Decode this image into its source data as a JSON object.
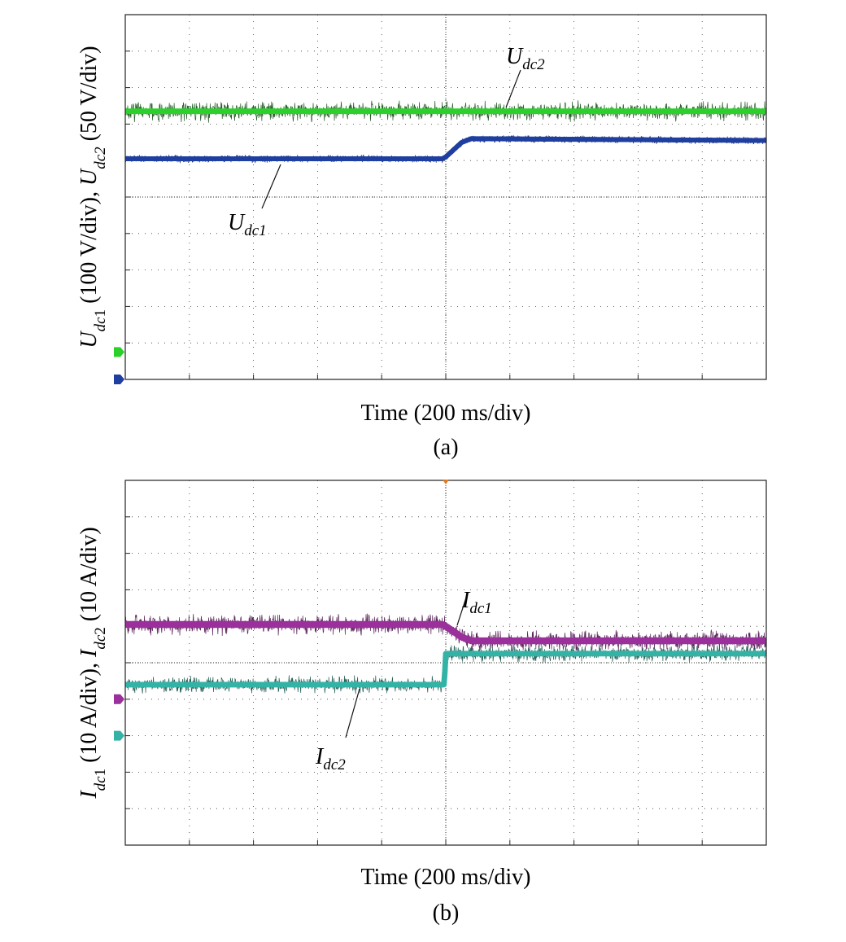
{
  "colors": {
    "udc2": "#2bd02b",
    "udc2_edge": "#124a12",
    "udc1": "#1f3fa0",
    "udc1_edge": "#0b1c55",
    "idc1": "#9b2f9b",
    "idc1_edge": "#4a0f4a",
    "idc2": "#33b3a6",
    "idc2_edge": "#0f4f47",
    "grid": "#333333",
    "frame": "#222222",
    "trigger_marker": "#e07820"
  },
  "chart_data": [
    {
      "type": "line",
      "panel_label": "(a)",
      "xlabel": "Time (200 ms/div)",
      "ylabel_parts": [
        {
          "text": "U",
          "italic": true
        },
        {
          "text": "dc",
          "italic": true,
          "sub": true
        },
        {
          "text": "1",
          "sub": true
        },
        {
          "text": " (100 V/div), "
        },
        {
          "text": "U",
          "italic": true
        },
        {
          "text": "dc",
          "italic": true,
          "sub": true
        },
        {
          "text": "2",
          "sub": true,
          "italic": true
        },
        {
          "text": " (50 V/div)"
        }
      ],
      "x_divisions": 10,
      "y_divisions": 10,
      "xlim": [
        0,
        2000
      ],
      "x_unit": "ms",
      "grid": true,
      "trigger_x": 1000,
      "series": [
        {
          "name_base": "U",
          "name_sub": "dc2",
          "channel_marker_div": 0.75,
          "noise_div": 0.22,
          "thickness_div": 0.18,
          "x": [
            0,
            1000,
            1050,
            2000
          ],
          "y_div": [
            7.35,
            7.35,
            7.35,
            7.35
          ]
        },
        {
          "name_base": "U",
          "name_sub": "dc1",
          "channel_marker_div": 0,
          "noise_div": 0.03,
          "thickness_div": 0.16,
          "x": [
            0,
            990,
            1000,
            1050,
            1080,
            2000
          ],
          "y_div": [
            6.05,
            6.05,
            6.1,
            6.5,
            6.6,
            6.55
          ]
        }
      ],
      "annotations": [
        {
          "series": "U_dc2",
          "base": "U",
          "sub": "dc2"
        },
        {
          "series": "U_dc1",
          "base": "U",
          "sub": "dc1"
        }
      ]
    },
    {
      "type": "line",
      "panel_label": "(b)",
      "xlabel": "Time (200 ms/div)",
      "ylabel_parts": [
        {
          "text": "I",
          "italic": true
        },
        {
          "text": "dc",
          "italic": true,
          "sub": true
        },
        {
          "text": "1",
          "sub": true
        },
        {
          "text": " (10 A/div), "
        },
        {
          "text": "I",
          "italic": true
        },
        {
          "text": "dc",
          "italic": true,
          "sub": true
        },
        {
          "text": "2",
          "sub": true
        },
        {
          "text": " (10 A/div)"
        }
      ],
      "x_divisions": 10,
      "y_divisions": 10,
      "xlim": [
        0,
        2000
      ],
      "x_unit": "ms",
      "grid": true,
      "trigger_x": 1000,
      "series": [
        {
          "name_base": "I",
          "name_sub": "dc1",
          "channel_marker_div": 4.0,
          "noise_div": 0.22,
          "thickness_div": 0.22,
          "x": [
            0,
            990,
            1000,
            1050,
            1080,
            2000
          ],
          "y_div": [
            6.05,
            6.05,
            6.0,
            5.7,
            5.6,
            5.6
          ]
        },
        {
          "name_base": "I",
          "name_sub": "dc2",
          "channel_marker_div": 3.0,
          "noise_div": 0.18,
          "thickness_div": 0.18,
          "x": [
            0,
            995,
            1000,
            2000
          ],
          "y_div": [
            4.4,
            4.4,
            5.25,
            5.25
          ]
        }
      ],
      "annotations": [
        {
          "series": "I_dc1",
          "base": "I",
          "sub": "dc1"
        },
        {
          "series": "I_dc2",
          "base": "I",
          "sub": "dc2"
        }
      ]
    }
  ]
}
